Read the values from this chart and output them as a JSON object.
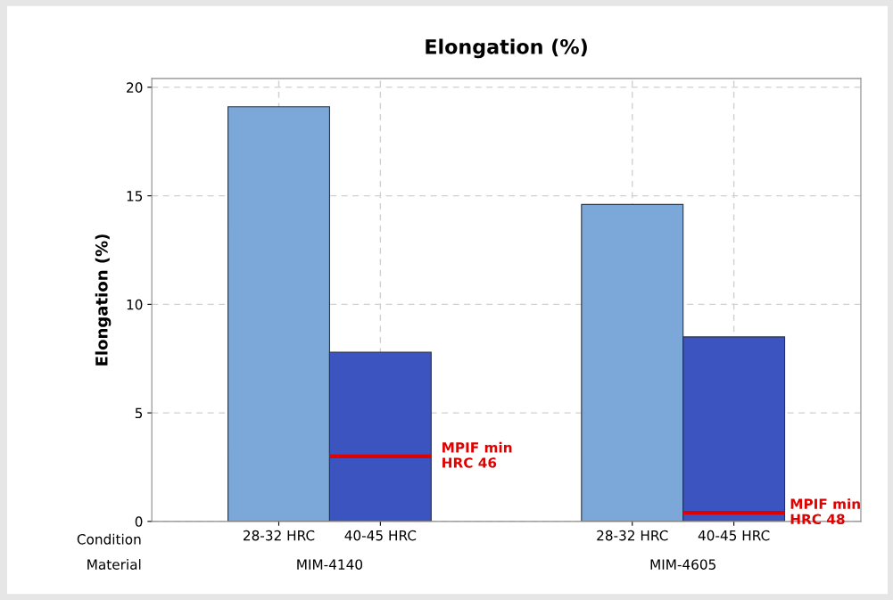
{
  "chart_data": {
    "type": "bar",
    "title": "Elongation (%)",
    "ylabel": "Elongation (%)",
    "categories": [
      "28-32 HRC",
      "40-45 HRC",
      "28-32 HRC",
      "40-45 HRC"
    ],
    "values": [
      19.1,
      7.8,
      14.6,
      8.5
    ],
    "colors": [
      "#7ba7d9",
      "#3b54bf",
      "#7ba7d9",
      "#3b54bf"
    ],
    "ylim": [
      0,
      20.4
    ],
    "yticks": [
      0,
      5,
      10,
      15,
      20
    ],
    "grid": true,
    "ref_lines": [
      {
        "axis": "y",
        "value": 3.0,
        "label": "MPIF min\nHRC 46",
        "color": "#e00000"
      },
      {
        "axis": "y",
        "value": 0.4,
        "label": "MPIF min\nHRC 48",
        "color": "#e00000"
      }
    ],
    "annotations": [
      "Condition",
      "Material",
      "MIM-4140",
      "MIM-4605"
    ]
  }
}
